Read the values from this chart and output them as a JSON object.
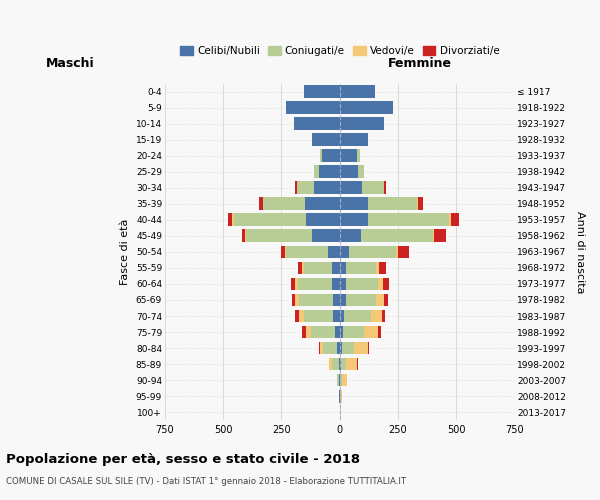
{
  "age_groups": [
    "0-4",
    "5-9",
    "10-14",
    "15-19",
    "20-24",
    "25-29",
    "30-34",
    "35-39",
    "40-44",
    "45-49",
    "50-54",
    "55-59",
    "60-64",
    "65-69",
    "70-74",
    "75-79",
    "80-84",
    "85-89",
    "90-94",
    "95-99",
    "100+"
  ],
  "birth_years": [
    "2013-2017",
    "2008-2012",
    "2003-2007",
    "1998-2002",
    "1993-1997",
    "1988-1992",
    "1983-1987",
    "1978-1982",
    "1973-1977",
    "1968-1972",
    "1963-1967",
    "1958-1962",
    "1953-1957",
    "1948-1952",
    "1943-1947",
    "1938-1942",
    "1933-1937",
    "1928-1932",
    "1923-1927",
    "1918-1922",
    "≤ 1917"
  ],
  "maschi": {
    "celibi": [
      155,
      230,
      195,
      120,
      75,
      90,
      110,
      150,
      145,
      120,
      50,
      35,
      35,
      30,
      30,
      20,
      10,
      5,
      2,
      2,
      0
    ],
    "coniugati": [
      0,
      0,
      0,
      0,
      10,
      20,
      75,
      180,
      310,
      280,
      180,
      120,
      145,
      145,
      125,
      105,
      60,
      30,
      8,
      3,
      0
    ],
    "vedovi": [
      0,
      0,
      0,
      0,
      0,
      0,
      0,
      0,
      5,
      5,
      5,
      5,
      10,
      15,
      20,
      20,
      15,
      10,
      3,
      0,
      0
    ],
    "divorziati": [
      0,
      0,
      0,
      0,
      0,
      0,
      8,
      15,
      20,
      15,
      15,
      20,
      20,
      15,
      15,
      15,
      3,
      0,
      0,
      0,
      0
    ]
  },
  "femmine": {
    "nubili": [
      150,
      230,
      190,
      120,
      75,
      80,
      95,
      120,
      120,
      90,
      40,
      25,
      25,
      25,
      20,
      15,
      10,
      5,
      2,
      2,
      0
    ],
    "coniugate": [
      0,
      0,
      0,
      0,
      10,
      25,
      95,
      210,
      350,
      310,
      200,
      130,
      140,
      130,
      115,
      90,
      50,
      20,
      8,
      2,
      1
    ],
    "vedove": [
      0,
      0,
      0,
      0,
      0,
      0,
      0,
      5,
      5,
      5,
      10,
      15,
      20,
      35,
      45,
      60,
      60,
      50,
      20,
      5,
      2
    ],
    "divorziate": [
      0,
      0,
      0,
      0,
      0,
      0,
      10,
      20,
      35,
      50,
      45,
      30,
      25,
      15,
      15,
      10,
      5,
      2,
      0,
      0,
      0
    ]
  },
  "colors": {
    "celibi": "#4a74a8",
    "coniugati": "#b8cc96",
    "vedovi": "#f5c878",
    "divorziati": "#cc2222"
  },
  "legend_labels": [
    "Celibi/Nubili",
    "Coniugati/e",
    "Vedovi/e",
    "Divorziati/e"
  ],
  "title": "Popolazione per età, sesso e stato civile - 2018",
  "subtitle": "COMUNE DI CASALE SUL SILE (TV) - Dati ISTAT 1° gennaio 2018 - Elaborazione TUTTITALIA.IT",
  "ylabel": "Fasce di età",
  "ylabel_right": "Anni di nascita",
  "xlabel_maschi": "Maschi",
  "xlabel_femmine": "Femmine",
  "xlim": 750,
  "xticks": [
    -750,
    -500,
    -250,
    0,
    250,
    500,
    750
  ],
  "bg_color": "#f8f8f8",
  "grid_color": "#cccccc"
}
